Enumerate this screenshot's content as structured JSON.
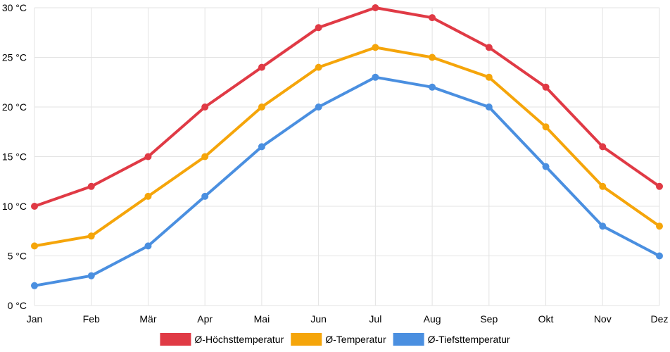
{
  "chart_data": {
    "type": "line",
    "categories": [
      "Jan",
      "Feb",
      "Mär",
      "Apr",
      "Mai",
      "Jun",
      "Jul",
      "Aug",
      "Sep",
      "Okt",
      "Nov",
      "Dez"
    ],
    "ylim": [
      0,
      30
    ],
    "yticks": [
      0,
      5,
      10,
      15,
      20,
      25,
      30
    ],
    "ytick_labels": [
      "0 °C",
      "5 °C",
      "10 °C",
      "15 °C",
      "20 °C",
      "25 °C",
      "30 °C"
    ],
    "grid": true,
    "legend_position": "bottom",
    "series": [
      {
        "name": "Ø-Höchsttemperatur",
        "color": "#e03a45",
        "values": [
          10,
          12,
          15,
          20,
          24,
          28,
          30,
          29,
          26,
          22,
          16,
          12
        ]
      },
      {
        "name": "Ø-Temperatur",
        "color": "#f5a50a",
        "values": [
          6,
          7,
          11,
          15,
          20,
          24,
          26,
          25,
          23,
          18,
          12,
          8
        ]
      },
      {
        "name": "Ø-Tiefsttemperatur",
        "color": "#4a8fe0",
        "values": [
          2,
          3,
          6,
          11,
          16,
          20,
          23,
          22,
          20,
          14,
          8,
          5
        ]
      }
    ]
  }
}
